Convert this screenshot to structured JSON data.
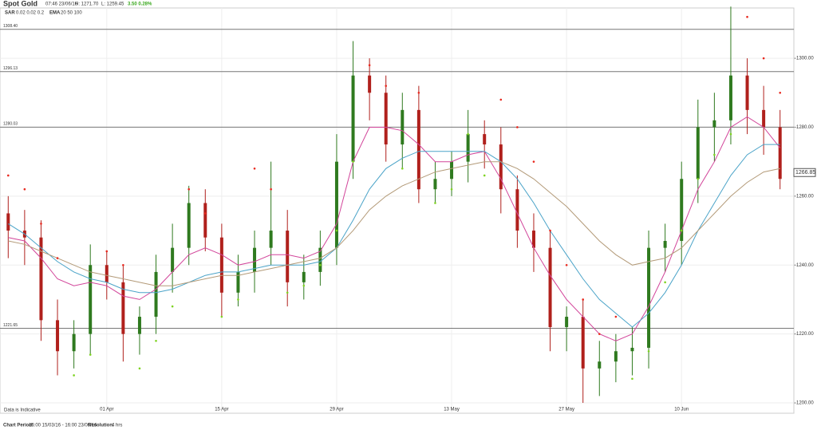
{
  "chart_data": {
    "type": "candlestick",
    "title": "Spot Gold",
    "timestamp": "07:46 23/06/16",
    "high_text": "H: 1271.70",
    "low_text": "L: 1259.45",
    "change_text": "3.50 0.28%",
    "indicator_sar_name": "SAR",
    "indicator_sar_params": "0.02 0.02 0.2",
    "indicator_ema_name": "EMA",
    "indicator_ema_params": "20 50 100",
    "disclaimer": "Data is Indicative",
    "period_label": "Chart Period:",
    "period_text": "16:00 15/03/16 - 16:00 23/06/16",
    "resolution_label": "Resolution:",
    "resolution_text": "4 hrs",
    "categories": [
      null,
      null,
      null,
      null,
      null,
      null,
      "01 Apr",
      null,
      null,
      null,
      null,
      null,
      null,
      "15 Apr",
      null,
      null,
      null,
      null,
      null,
      null,
      "29 Apr",
      null,
      null,
      null,
      null,
      null,
      null,
      "13 May",
      null,
      null,
      null,
      null,
      null,
      null,
      "27 May",
      null,
      null,
      null,
      null,
      null,
      null,
      "10 Jun",
      null,
      null,
      null,
      null,
      null,
      null
    ],
    "open": [
      1255,
      1250,
      1248,
      1224,
      1215,
      1220,
      1240,
      1235,
      1220,
      1225,
      1238,
      1245,
      1258,
      1248,
      1232,
      1238,
      1245,
      1250,
      1235,
      1238,
      1245,
      1270,
      1295,
      1290,
      1275,
      1285,
      1262,
      1265,
      1270,
      1278,
      1275,
      1262,
      1250,
      1245,
      1222,
      1225,
      1210,
      1212,
      1215,
      1216,
      1245,
      1247,
      1265,
      1280,
      1282,
      1295,
      1285,
      1280
    ],
    "high": [
      1260,
      1256,
      1253,
      1230,
      1224,
      1246,
      1244,
      1240,
      1228,
      1243,
      1252,
      1263,
      1262,
      1252,
      1243,
      1250,
      1270,
      1256,
      1243,
      1250,
      1278,
      1305,
      1300,
      1295,
      1290,
      1292,
      1270,
      1273,
      1285,
      1282,
      1280,
      1266,
      1255,
      1250,
      1228,
      1230,
      1218,
      1220,
      1222,
      1250,
      1252,
      1270,
      1288,
      1290,
      1315,
      1300,
      1292,
      1285
    ],
    "low": [
      1242,
      1240,
      1218,
      1208,
      1210,
      1214,
      1230,
      1212,
      1214,
      1220,
      1232,
      1240,
      1244,
      1225,
      1228,
      1232,
      1240,
      1228,
      1230,
      1234,
      1240,
      1265,
      1282,
      1270,
      1268,
      1258,
      1258,
      1260,
      1264,
      1268,
      1255,
      1245,
      1238,
      1215,
      1215,
      1200,
      1202,
      1206,
      1208,
      1210,
      1238,
      1240,
      1258,
      1270,
      1275,
      1278,
      1272,
      1262
    ],
    "close": [
      1250,
      1248,
      1224,
      1215,
      1220,
      1240,
      1235,
      1220,
      1225,
      1238,
      1245,
      1258,
      1248,
      1232,
      1238,
      1245,
      1250,
      1235,
      1238,
      1245,
      1270,
      1295,
      1290,
      1275,
      1285,
      1262,
      1265,
      1270,
      1278,
      1275,
      1262,
      1250,
      1245,
      1222,
      1225,
      1210,
      1212,
      1215,
      1216,
      1245,
      1247,
      1265,
      1280,
      1282,
      1295,
      1285,
      1280,
      1265
    ],
    "up_color": "#2f7a1f",
    "down_color": "#b0201c",
    "series": [
      {
        "color": "#d2459a",
        "values": [
          1248,
          1247,
          1242,
          1236,
          1234,
          1235,
          1234,
          1231,
          1230,
          1233,
          1238,
          1243,
          1245,
          1243,
          1240,
          1241,
          1243,
          1243,
          1242,
          1244,
          1252,
          1270,
          1280,
          1280,
          1279,
          1275,
          1270,
          1270,
          1272,
          1273,
          1265,
          1255,
          1245,
          1237,
          1230,
          1225,
          1220,
          1218,
          1220,
          1228,
          1238,
          1250,
          1262,
          1270,
          1280,
          1283,
          1280,
          1274
        ]
      },
      {
        "color": "#4aa3c8",
        "values": [
          1252,
          1249,
          1245,
          1241,
          1238,
          1236,
          1235,
          1233,
          1232,
          1232,
          1233,
          1235,
          1237,
          1238,
          1238,
          1239,
          1240,
          1240,
          1240,
          1241,
          1245,
          1253,
          1262,
          1268,
          1271,
          1273,
          1273,
          1273,
          1273,
          1273,
          1270,
          1265,
          1258,
          1250,
          1243,
          1236,
          1230,
          1226,
          1222,
          1226,
          1232,
          1240,
          1250,
          1258,
          1266,
          1272,
          1275,
          1275
        ]
      },
      {
        "color": "#b39a78",
        "values": [
          1247,
          1246,
          1244,
          1242,
          1240,
          1238,
          1237,
          1236,
          1235,
          1234,
          1234,
          1235,
          1236,
          1237,
          1237,
          1238,
          1239,
          1240,
          1241,
          1242,
          1245,
          1250,
          1256,
          1260,
          1263,
          1265,
          1267,
          1268,
          1269,
          1270,
          1270,
          1268,
          1265,
          1261,
          1257,
          1252,
          1247,
          1243,
          1240,
          1241,
          1242,
          1245,
          1250,
          1255,
          1260,
          1264,
          1267,
          1268
        ]
      }
    ],
    "sar": [
      1266,
      1262,
      1252,
      1242,
      1208,
      1214,
      1244,
      1240,
      1210,
      1218,
      1228,
      1262,
      1255,
      1225,
      1230,
      1268,
      1262,
      1232,
      1234,
      1240,
      1250,
      1270,
      1298,
      1292,
      1268,
      1290,
      1258,
      1262,
      1278,
      1266,
      1288,
      1280,
      1270,
      1250,
      1240,
      1230,
      1220,
      1225,
      1207,
      1215,
      1235,
      1250,
      1265,
      1272,
      1278,
      1312,
      1300,
      1290
    ],
    "sar_up_color": "#7ed321",
    "sar_down_color": "#e8281e",
    "levels": [
      {
        "value": 1308.4,
        "label": "1308.40"
      },
      {
        "value": 1296.13,
        "label": "1296.13"
      },
      {
        "value": 1280.03,
        "label": "1280.03"
      },
      {
        "value": 1221.65,
        "label": "1221.65"
      }
    ],
    "last_price": {
      "value": 1266.85,
      "label": "1266.85"
    },
    "ylim": [
      1197,
      1314.6
    ],
    "yticks": [
      {
        "value": 1200,
        "label": "1200.00"
      },
      {
        "value": 1220,
        "label": "1220.00"
      },
      {
        "value": 1240,
        "label": "1240.00"
      },
      {
        "value": 1260,
        "label": "1260.00"
      },
      {
        "value": 1280,
        "label": "1280.00"
      },
      {
        "value": 1300,
        "label": "1300.00"
      }
    ],
    "grid": true
  }
}
